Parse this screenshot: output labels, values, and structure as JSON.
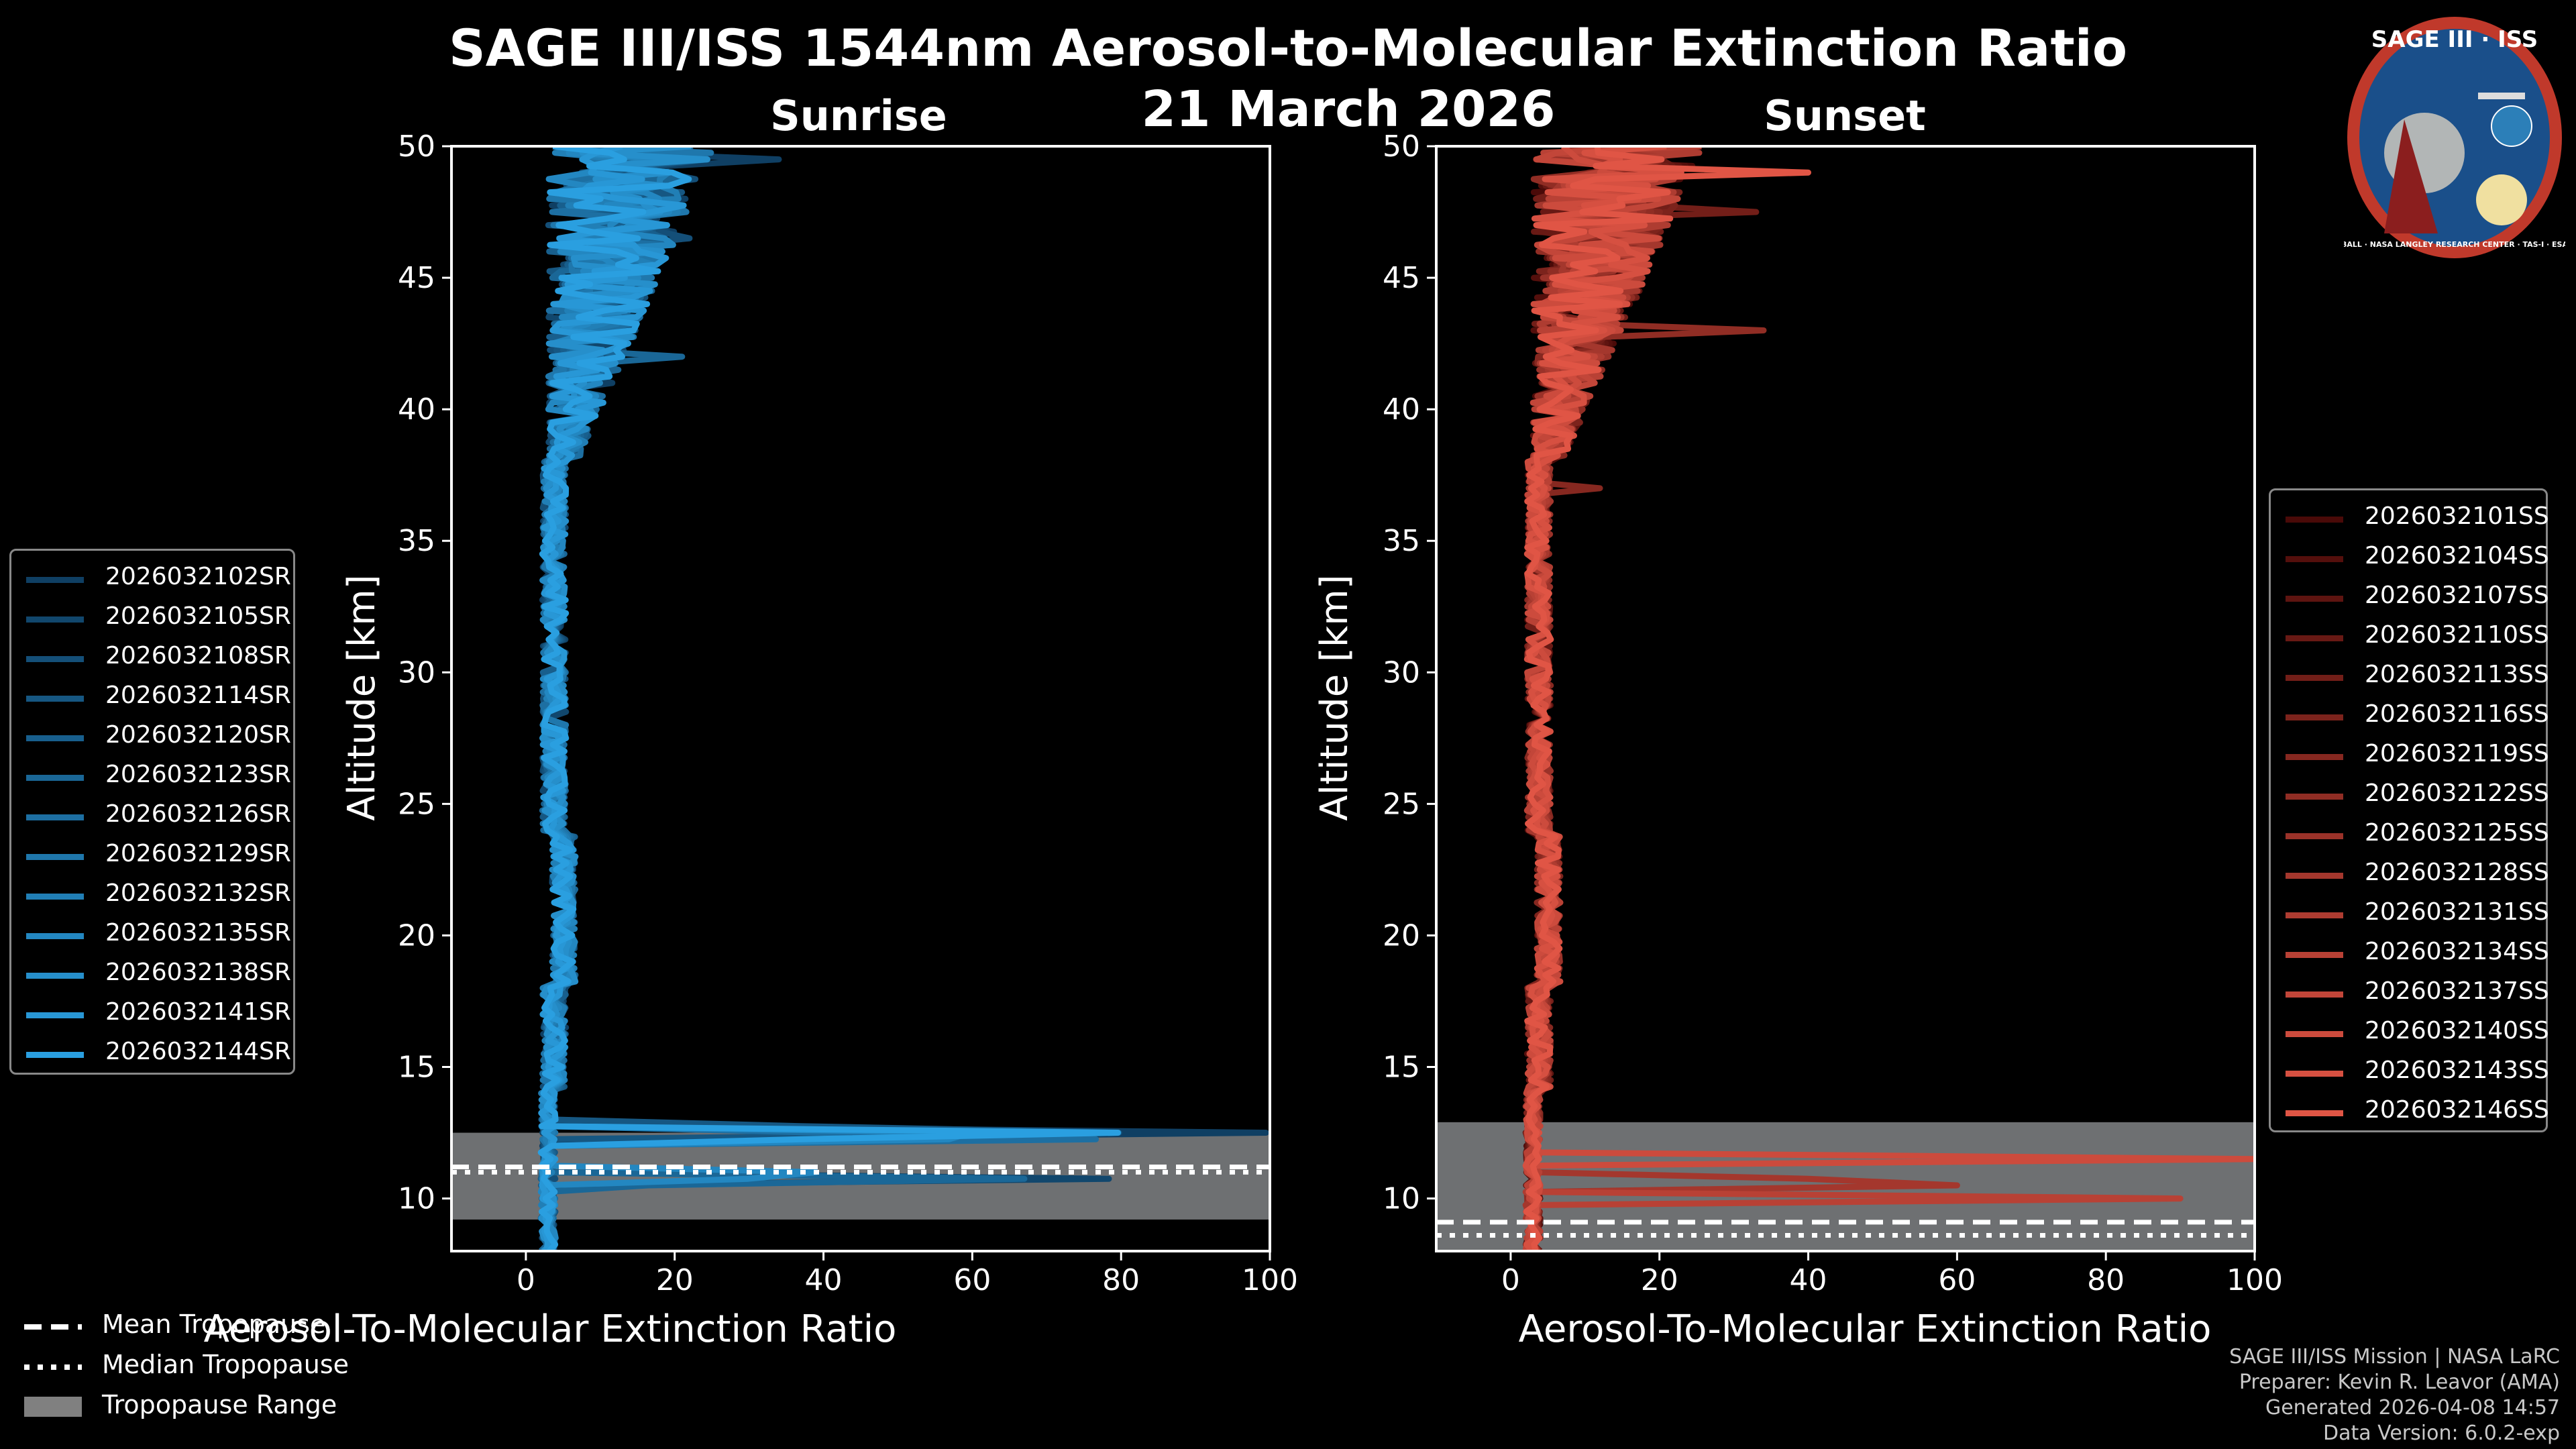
{
  "title": "SAGE III/ISS 1544nm Aerosol-to-Molecular Extinction Ratio",
  "date": "21 March 2026",
  "logo": {
    "text": "SAGE III · ISS",
    "ring_text": "BALL · NASA LANGLEY RESEARCH CENTER · TAS-I · ESA",
    "colors": {
      "ring": "#c0392b",
      "bg": "#1a4f8a"
    }
  },
  "credits": [
    "SAGE III/ISS Mission | NASA LaRC",
    "Preparer: Kevin R. Leavor (AMA)",
    "Generated 2026-04-08 14:57",
    "Data Version: 6.0.2-exp"
  ],
  "tropo_legend": [
    {
      "label": "Mean Tropopause",
      "style": "dashed"
    },
    {
      "label": "Median Tropopause",
      "style": "dotted"
    },
    {
      "label": "Tropopause Range",
      "style": "patch"
    }
  ],
  "chart_data": [
    {
      "type": "line",
      "title": "Sunrise",
      "xlabel": "Aerosol-To-Molecular Extinction Ratio",
      "ylabel": "Altitude [km]",
      "xlim": [
        -10,
        100
      ],
      "ylim": [
        8,
        50
      ],
      "xticks": [
        0,
        20,
        40,
        60,
        80,
        100
      ],
      "yticks": [
        10,
        15,
        20,
        25,
        30,
        35,
        40,
        45,
        50
      ],
      "tropopause": {
        "mean": 11.2,
        "median": 11.0,
        "range": [
          9.2,
          12.5
        ]
      },
      "colors": {
        "line": "#1a8fd4",
        "light": "#2a9fe0"
      },
      "series": [
        {
          "name": "2026032102SR"
        },
        {
          "name": "2026032105SR"
        },
        {
          "name": "2026032108SR"
        },
        {
          "name": "2026032114SR"
        },
        {
          "name": "2026032120SR"
        },
        {
          "name": "2026032123SR"
        },
        {
          "name": "2026032126SR"
        },
        {
          "name": "2026032129SR"
        },
        {
          "name": "2026032132SR"
        },
        {
          "name": "2026032135SR"
        },
        {
          "name": "2026032138SR"
        },
        {
          "name": "2026032141SR"
        },
        {
          "name": "2026032144SR"
        }
      ]
    },
    {
      "type": "line",
      "title": "Sunset",
      "xlabel": "Aerosol-To-Molecular Extinction Ratio",
      "ylabel": "Altitude [km]",
      "xlim": [
        -10,
        100
      ],
      "ylim": [
        8,
        50
      ],
      "xticks": [
        0,
        20,
        40,
        60,
        80,
        100
      ],
      "yticks": [
        10,
        15,
        20,
        25,
        30,
        35,
        40,
        45,
        50
      ],
      "tropopause": {
        "mean": 9.1,
        "median": 8.6,
        "range": [
          8.0,
          12.9
        ]
      },
      "colors": {
        "line": "#e05545",
        "dark": "#4a0a08"
      },
      "series": [
        {
          "name": "2026032101SS"
        },
        {
          "name": "2026032104SS"
        },
        {
          "name": "2026032107SS"
        },
        {
          "name": "2026032110SS"
        },
        {
          "name": "2026032113SS"
        },
        {
          "name": "2026032116SS"
        },
        {
          "name": "2026032119SS"
        },
        {
          "name": "2026032122SS"
        },
        {
          "name": "2026032125SS"
        },
        {
          "name": "2026032128SS"
        },
        {
          "name": "2026032131SS"
        },
        {
          "name": "2026032134SS"
        },
        {
          "name": "2026032137SS"
        },
        {
          "name": "2026032140SS"
        },
        {
          "name": "2026032143SS"
        },
        {
          "name": "2026032146SS"
        }
      ]
    }
  ]
}
